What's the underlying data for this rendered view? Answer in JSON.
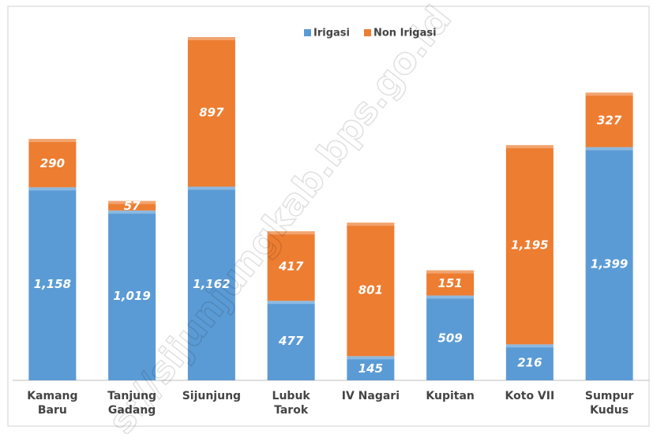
{
  "chart_data": {
    "type": "stacked_bar",
    "categories": [
      "Kamang\nBaru",
      "Tanjung\nGadang",
      "Sijunjung",
      "Lubuk\nTarok",
      "IV Nagari",
      "Kupitan",
      "Koto VII",
      "Sumpur\nKudus"
    ],
    "series": [
      {
        "name": "Irigasi",
        "color": "#5b9bd5",
        "values": [
          1158,
          1019,
          1162,
          477,
          145,
          509,
          216,
          1399
        ],
        "value_labels": [
          "1,158",
          "1,019",
          "1,162",
          "477",
          "145",
          "509",
          "216",
          "1,399"
        ]
      },
      {
        "name": "Non Irigasi",
        "color": "#ed7d31",
        "values": [
          290,
          57,
          897,
          417,
          801,
          151,
          1195,
          327
        ],
        "value_labels": [
          "290",
          "57",
          "897",
          "417",
          "801",
          "151",
          "1,195",
          "327"
        ]
      }
    ],
    "legend": "top",
    "watermark": "s://sijunjungkab.bps.go.id"
  }
}
